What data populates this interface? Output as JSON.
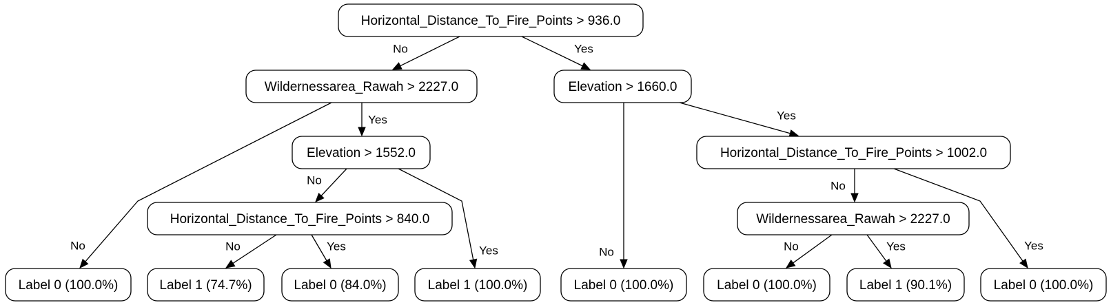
{
  "nodes": {
    "root": "Horizontal_Distance_To_Fire_Points > 936.0",
    "n_wild1": "Wildernessarea_Rawah > 2227.0",
    "n_elev1660": "Elevation > 1660.0",
    "n_elev1552": "Elevation > 1552.0",
    "n_hd840": "Horizontal_Distance_To_Fire_Points > 840.0",
    "n_hd1002": "Horizontal_Distance_To_Fire_Points > 1002.0",
    "n_wild2": "Wildernessarea_Rawah > 2227.0",
    "leaf1": "Label 0 (100.0%)",
    "leaf2": "Label 1 (74.7%)",
    "leaf3": "Label 0 (84.0%)",
    "leaf4": "Label 1 (100.0%)",
    "leaf5": "Label 0 (100.0%)",
    "leaf6": "Label 0 (100.0%)",
    "leaf7": "Label 1 (90.1%)",
    "leaf8": "Label 0 (100.0%)"
  },
  "edges": [
    {
      "from": "root",
      "to": "n_wild1",
      "label": "No"
    },
    {
      "from": "root",
      "to": "n_elev1660",
      "label": "Yes"
    },
    {
      "from": "n_wild1",
      "to": "leaf1",
      "label": "No"
    },
    {
      "from": "n_wild1",
      "to": "n_elev1552",
      "label": "Yes"
    },
    {
      "from": "n_elev1552",
      "to": "n_hd840",
      "label": "No"
    },
    {
      "from": "n_elev1552",
      "to": "leaf4",
      "label": "Yes"
    },
    {
      "from": "n_hd840",
      "to": "leaf2",
      "label": "No"
    },
    {
      "from": "n_hd840",
      "to": "leaf3",
      "label": "Yes"
    },
    {
      "from": "n_elev1660",
      "to": "leaf5",
      "label": "No"
    },
    {
      "from": "n_elev1660",
      "to": "n_hd1002",
      "label": "Yes"
    },
    {
      "from": "n_hd1002",
      "to": "n_wild2",
      "label": "No"
    },
    {
      "from": "n_hd1002",
      "to": "leaf8",
      "label": "Yes"
    },
    {
      "from": "n_wild2",
      "to": "leaf6",
      "label": "No"
    },
    {
      "from": "n_wild2",
      "to": "leaf7",
      "label": "Yes"
    }
  ]
}
